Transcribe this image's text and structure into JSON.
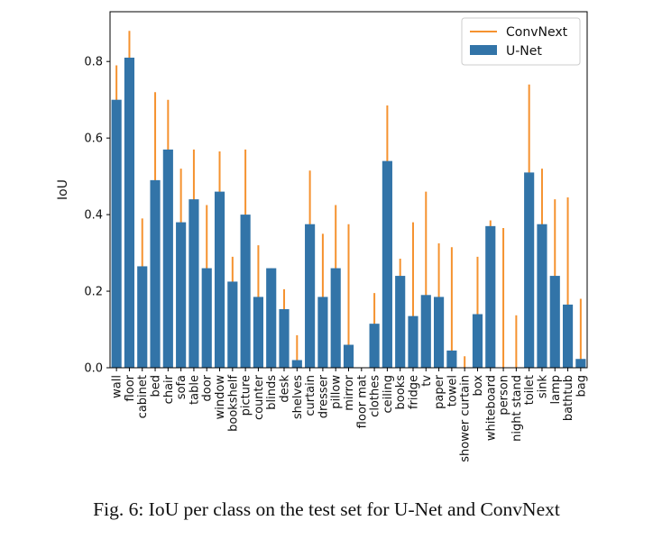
{
  "caption": "Fig. 6: IoU per class on the test set for U-Net and ConvNext",
  "colors": {
    "convnext": "#f5922f",
    "unet": "#3274a8"
  },
  "chart_data": {
    "type": "bar",
    "ylabel": "IoU",
    "xlabel": "",
    "ylim": [
      0,
      0.93
    ],
    "yticks": [
      "0.0",
      "0.2",
      "0.4",
      "0.6",
      "0.8"
    ],
    "legend": {
      "position": "top-right",
      "entries": [
        "ConvNext",
        "U-Net"
      ]
    },
    "categories": [
      "wall",
      "floor",
      "cabinet",
      "bed",
      "chair",
      "sofa",
      "table",
      "door",
      "window",
      "bookshelf",
      "picture",
      "counter",
      "blinds",
      "desk",
      "shelves",
      "curtain",
      "dresser",
      "pillow",
      "mirror",
      "floor mat",
      "clothes",
      "ceiling",
      "books",
      "fridge",
      "tv",
      "paper",
      "towel",
      "shower curtain",
      "box",
      "whiteboard",
      "person",
      "night stand",
      "toilet",
      "sink",
      "lamp",
      "bathtub",
      "bag"
    ],
    "series": [
      {
        "name": "U-Net",
        "style": "bar",
        "values": [
          0.7,
          0.81,
          0.265,
          0.49,
          0.57,
          0.38,
          0.44,
          0.26,
          0.46,
          0.225,
          0.4,
          0.185,
          0.26,
          0.153,
          0.02,
          0.375,
          0.185,
          0.26,
          0.06,
          0.0,
          0.115,
          0.54,
          0.24,
          0.135,
          0.19,
          0.185,
          0.045,
          0.0,
          0.14,
          0.37,
          0.0,
          0.0,
          0.51,
          0.375,
          0.24,
          0.165,
          0.023
        ]
      },
      {
        "name": "ConvNext",
        "style": "line",
        "values": [
          0.79,
          0.88,
          0.39,
          0.72,
          0.7,
          0.52,
          0.57,
          0.425,
          0.565,
          0.29,
          0.57,
          0.32,
          0.26,
          0.205,
          0.085,
          0.515,
          0.35,
          0.425,
          0.375,
          0.0,
          0.195,
          0.685,
          0.285,
          0.38,
          0.46,
          0.325,
          0.315,
          0.03,
          0.29,
          0.385,
          0.365,
          0.137,
          0.74,
          0.52,
          0.44,
          0.445,
          0.18
        ]
      }
    ]
  }
}
